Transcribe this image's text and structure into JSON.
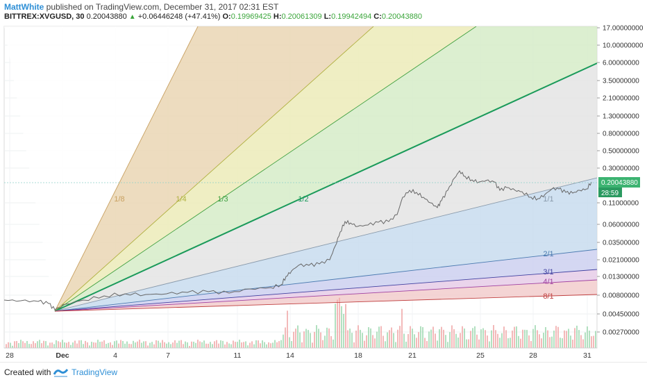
{
  "header": {
    "author": "MattWhite",
    "published": "published on TradingView.com, December 31, 2017 02:31 EST",
    "symbol": "BITTREX:XVGUSD, 30",
    "last": "0.20043880",
    "change": "+0.06446248 (+47.41%)",
    "open_label": "O:",
    "open": "0.19969425",
    "high_label": "H:",
    "high": "0.20061309",
    "low_label": "L:",
    "low": "0.19942494",
    "close_label": "C:",
    "close": "0.20043880"
  },
  "price_axis": {
    "ticks": [
      "17.00000000",
      "10.00000000",
      "6.00000000",
      "3.50000000",
      "2.10000000",
      "1.30000000",
      "0.80000000",
      "0.50000000",
      "0.30000000",
      "0.11000000",
      "0.06000000",
      "0.03500000",
      "0.02100000",
      "0.01300000",
      "0.00800000",
      "0.00450000",
      "0.00270000"
    ],
    "current_price": "0.20043880",
    "countdown": "28:59"
  },
  "time_axis": {
    "labels": [
      "28",
      "Dec",
      "4",
      "7",
      "11",
      "14",
      "18",
      "21",
      "25",
      "28",
      "31"
    ]
  },
  "gann_fan": {
    "lines": [
      "1/8",
      "1/4",
      "1/3",
      "1/2",
      "1/1",
      "2/1",
      "3/1",
      "4/1",
      "8/1"
    ],
    "colors": {
      "1/8": "#c8a060",
      "1/4": "#b0b040",
      "1/3": "#40a040",
      "1/2": "#1a9a5a",
      "1/1": "#8899aa",
      "2/1": "#4a7ab0",
      "3/1": "#4040a0",
      "4/1": "#a040a0",
      "8/1": "#c04040"
    }
  },
  "footer": {
    "created_with": "Created with",
    "brand": "TradingView",
    "brand_color": "#2e8fd6"
  }
}
